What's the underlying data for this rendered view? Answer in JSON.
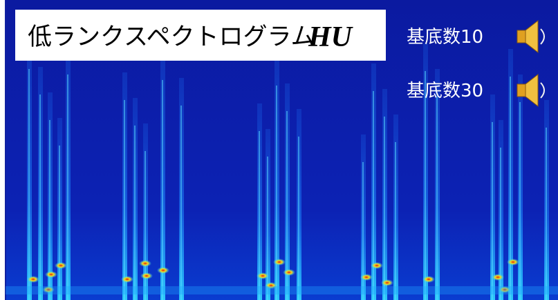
{
  "title": {
    "text": "低ランクスペクトログラム",
    "math": "HU"
  },
  "audio": [
    {
      "label": "基底数10"
    },
    {
      "label": "基底数30"
    }
  ]
}
